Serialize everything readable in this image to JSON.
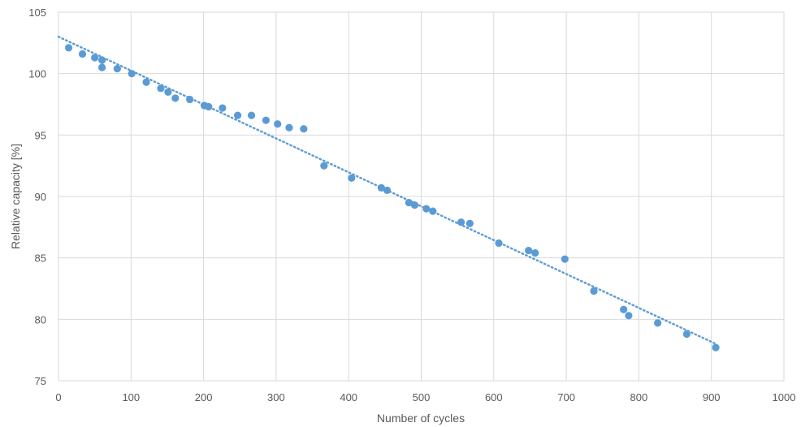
{
  "colors": {
    "series": "#5b9bd5",
    "grid": "#d9d9d9",
    "axis_text": "#595959"
  },
  "chart_data": {
    "type": "scatter",
    "title": "",
    "xlabel": "Number of cycles",
    "ylabel": "Relative capacity [%]",
    "xlim": [
      0,
      1000
    ],
    "ylim": [
      75,
      105
    ],
    "x_ticks": [
      "0",
      "100",
      "200",
      "300",
      "400",
      "500",
      "600",
      "700",
      "800",
      "900",
      "1000"
    ],
    "y_ticks": [
      "75",
      "80",
      "85",
      "90",
      "95",
      "100",
      "105"
    ],
    "grid": true,
    "legend": "none",
    "series": [
      {
        "marker": "circle",
        "points": [
          [
            14,
            102.1
          ],
          [
            33,
            101.6
          ],
          [
            50,
            101.3
          ],
          [
            60,
            101.1
          ],
          [
            60,
            100.5
          ],
          [
            81,
            100.4
          ],
          [
            101,
            100.0
          ],
          [
            121,
            99.3
          ],
          [
            141,
            98.8
          ],
          [
            151,
            98.5
          ],
          [
            161,
            98.0
          ],
          [
            181,
            97.9
          ],
          [
            201,
            97.4
          ],
          [
            207,
            97.3
          ],
          [
            226,
            97.2
          ],
          [
            247,
            96.6
          ],
          [
            266,
            96.6
          ],
          [
            286,
            96.2
          ],
          [
            302,
            95.9
          ],
          [
            318,
            95.6
          ],
          [
            338,
            95.5
          ],
          [
            366,
            92.5
          ],
          [
            404,
            91.5
          ],
          [
            445,
            90.7
          ],
          [
            453,
            90.5
          ],
          [
            483,
            89.5
          ],
          [
            491,
            89.3
          ],
          [
            507,
            89.0
          ],
          [
            516,
            88.8
          ],
          [
            555,
            87.9
          ],
          [
            567,
            87.8
          ],
          [
            607,
            86.2
          ],
          [
            648,
            85.6
          ],
          [
            657,
            85.4
          ],
          [
            698,
            84.9
          ],
          [
            738,
            82.3
          ],
          [
            779,
            80.8
          ],
          [
            786,
            80.3
          ],
          [
            826,
            79.7
          ],
          [
            866,
            78.8
          ],
          [
            906,
            77.7
          ]
        ]
      }
    ],
    "trendline": {
      "style": "dotted",
      "from": [
        0,
        103.0
      ],
      "to": [
        906,
        78.0
      ]
    }
  }
}
